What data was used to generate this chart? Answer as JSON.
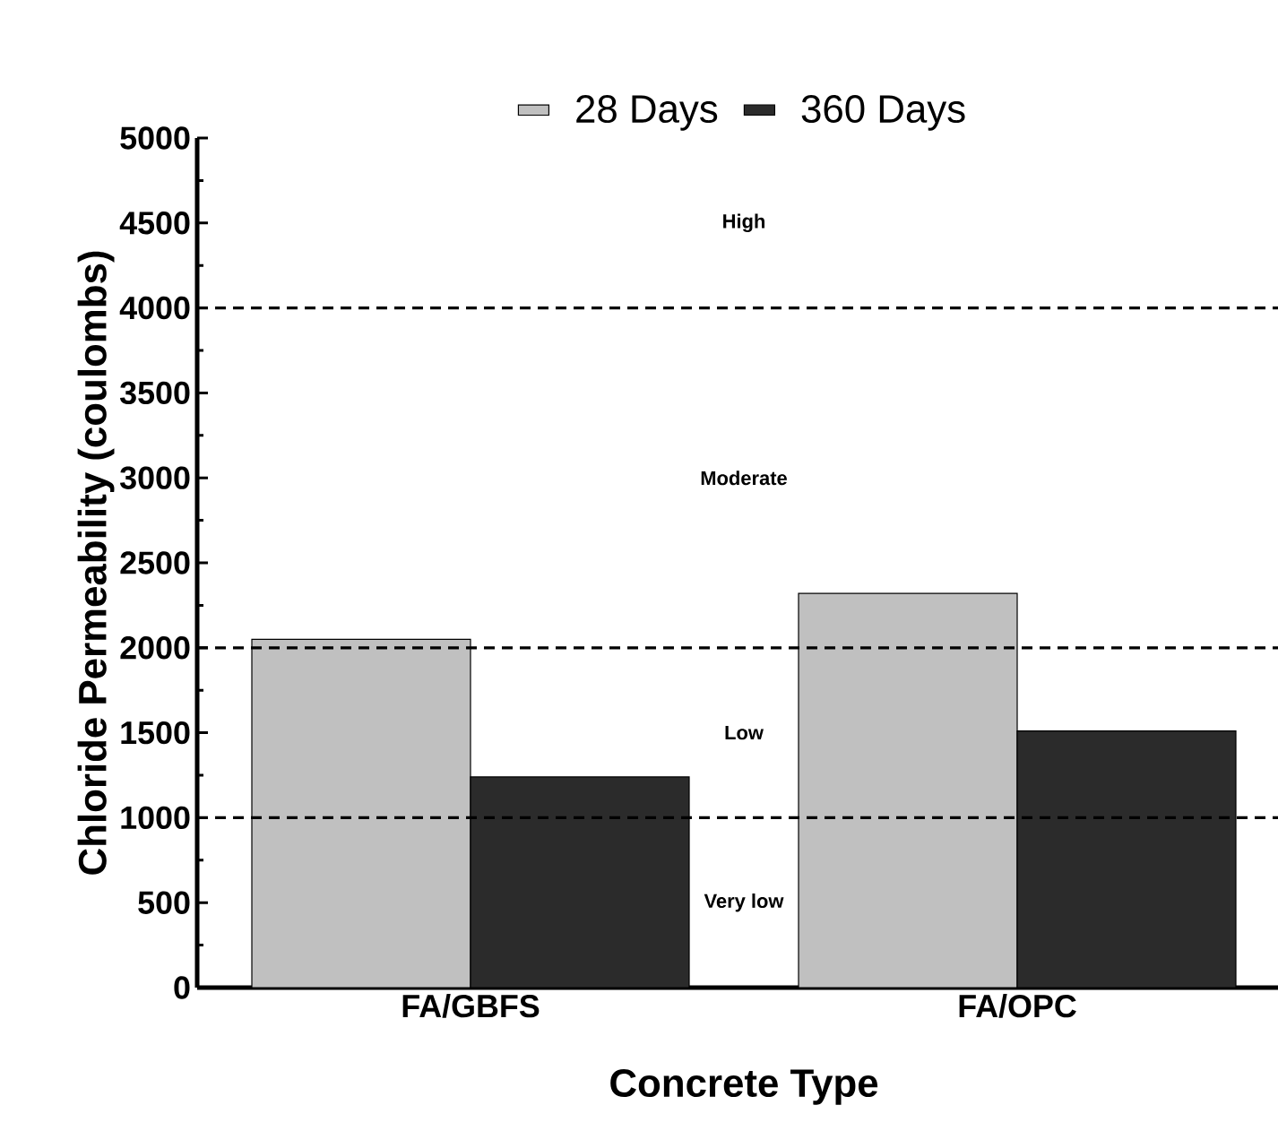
{
  "chart_data": {
    "type": "bar",
    "xlabel": "Concrete Type",
    "ylabel": "Chloride Permeability (coulombs)",
    "categories": [
      "FA/GBFS",
      "FA/OPC"
    ],
    "series": [
      {
        "name": "28 Days",
        "color": "#c0c0c0",
        "values": [
          2050,
          2320
        ]
      },
      {
        "name": "360 Days",
        "color": "#2b2b2b",
        "values": [
          1240,
          1510
        ]
      }
    ],
    "ylim": [
      0,
      5000
    ],
    "yticks": [
      0,
      500,
      1000,
      1500,
      2000,
      2500,
      3000,
      3500,
      4000,
      4500,
      5000
    ],
    "ref_lines": [
      {
        "axis": "y",
        "value": 1000,
        "color": "#000000",
        "line_style": "dashed"
      },
      {
        "axis": "y",
        "value": 2000,
        "color": "#000000",
        "line_style": "dashed"
      },
      {
        "axis": "y",
        "value": 4000,
        "color": "#000000",
        "line_style": "dashed"
      }
    ],
    "annotations": [
      "High",
      "Moderate",
      "Low",
      "Very low"
    ],
    "legend": "top",
    "grid": false
  }
}
